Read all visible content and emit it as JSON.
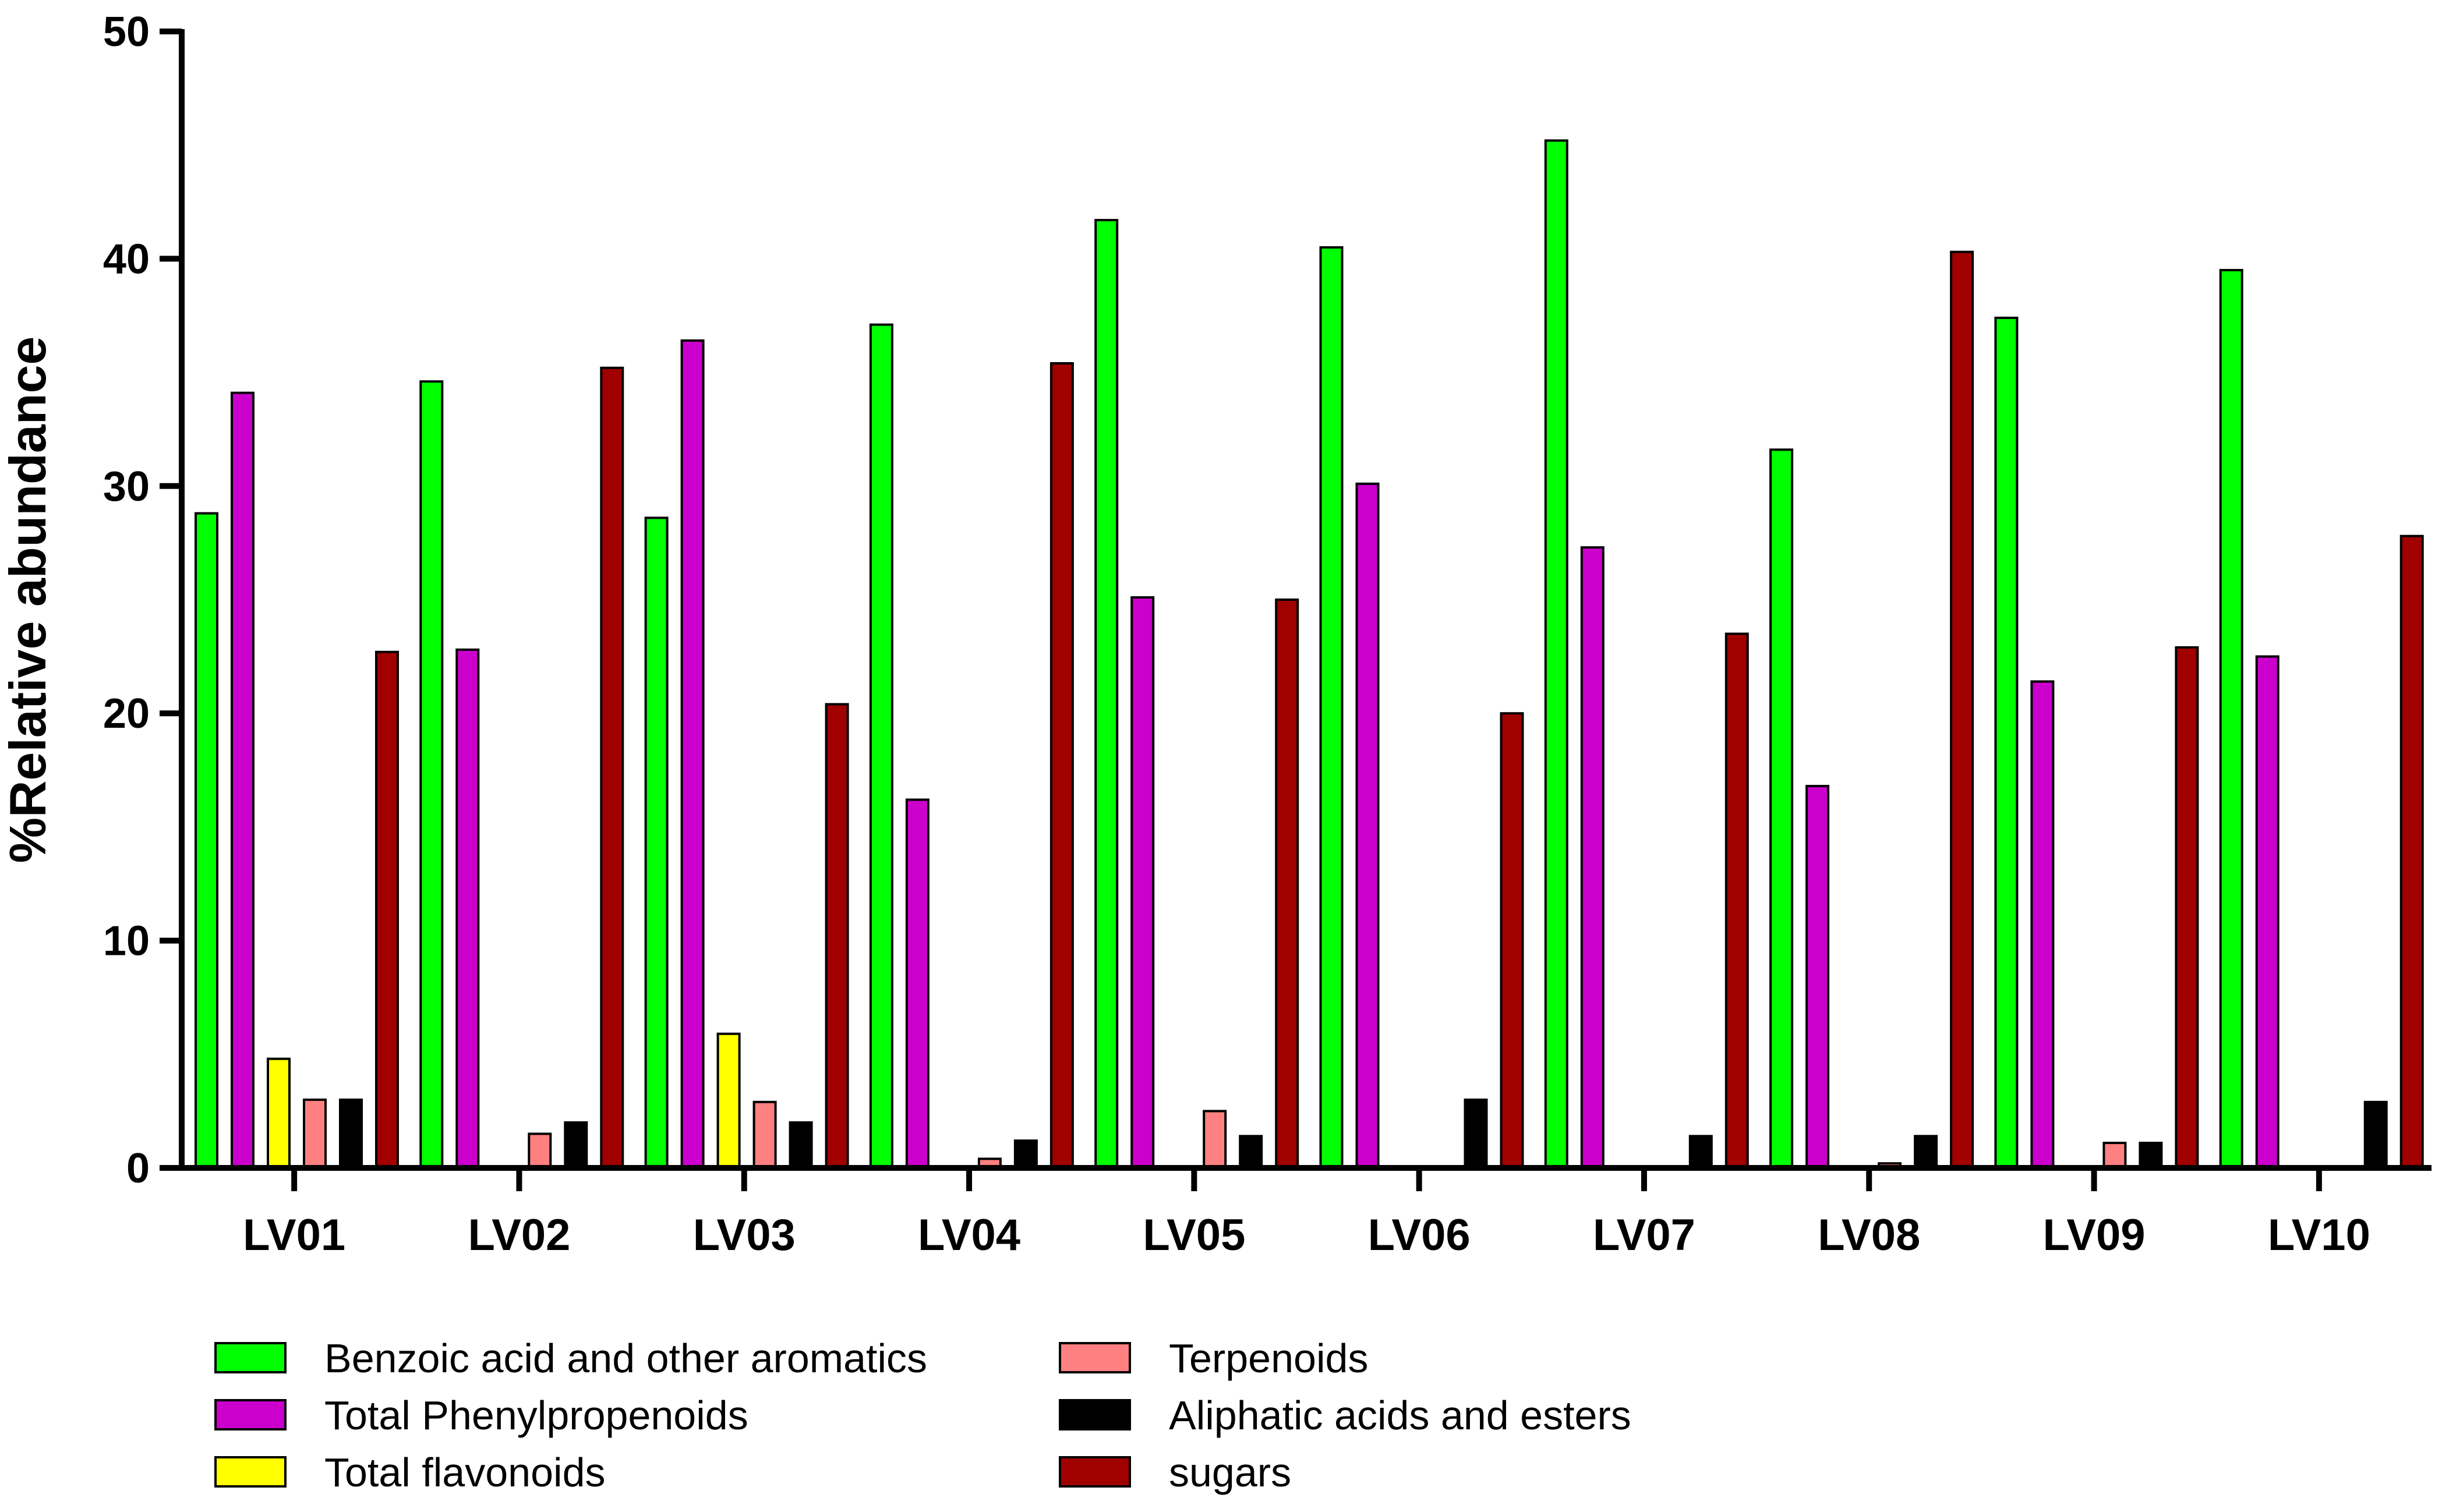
{
  "chart_data": {
    "type": "bar",
    "title": "",
    "xlabel": "",
    "ylabel": "%Relative abundance",
    "ylim": [
      0,
      50
    ],
    "yticks": [
      "0",
      "10",
      "20",
      "30",
      "40",
      "50"
    ],
    "categories": [
      "LV01",
      "LV02",
      "LV03",
      "LV04",
      "LV05",
      "LV06",
      "LV07",
      "LV08",
      "LV09",
      "LV10"
    ],
    "series": [
      {
        "name": "Benzoic acid and other aromatics",
        "color": "#00ff00",
        "values": [
          28.8,
          34.6,
          28.6,
          37.1,
          41.7,
          40.5,
          45.2,
          31.6,
          37.4,
          39.5
        ]
      },
      {
        "name": "Total Phenylpropenoids",
        "color": "#cc00cc",
        "values": [
          34.1,
          22.8,
          36.4,
          16.2,
          25.1,
          30.1,
          27.3,
          16.8,
          21.4,
          22.5
        ]
      },
      {
        "name": "Total flavonoids",
        "color": "#ffff00",
        "values": [
          4.8,
          0,
          5.9,
          0,
          0,
          0,
          0,
          0,
          0,
          0
        ]
      },
      {
        "name": "Terpenoids",
        "color": "#ff8080",
        "values": [
          3.0,
          1.5,
          2.9,
          0.4,
          2.5,
          0,
          0,
          0.2,
          1.1,
          0
        ]
      },
      {
        "name": "Aliphatic acids and esters",
        "color": "#000000",
        "values": [
          3.0,
          2.0,
          2.0,
          1.2,
          1.4,
          3.0,
          1.4,
          1.4,
          1.1,
          2.9
        ]
      },
      {
        "name": "sugars",
        "color": "#a00000",
        "values": [
          22.7,
          35.2,
          20.4,
          35.4,
          25.0,
          20.0,
          23.5,
          40.3,
          22.9,
          27.8
        ]
      }
    ],
    "legend_position": "bottom-left"
  }
}
